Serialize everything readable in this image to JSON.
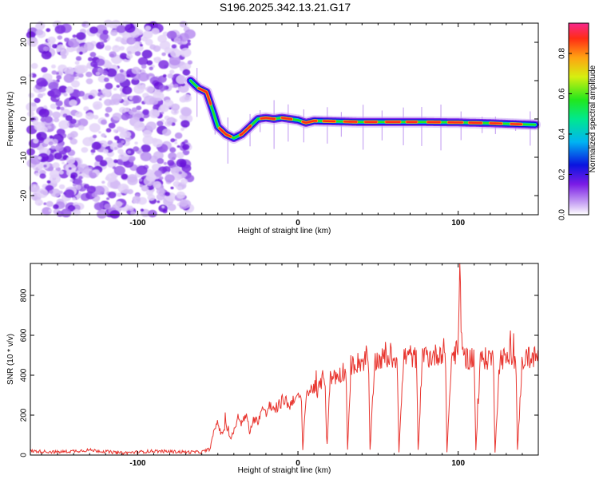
{
  "chart_data": [
    {
      "type": "heatmap",
      "title": "S196.2025.342.13.21.G17",
      "xlabel": "Height of straight line (km)",
      "ylabel": "Frequency (Hz)",
      "xlim": [
        -167,
        150
      ],
      "ylim": [
        -25,
        25
      ],
      "x_ticks": [
        -100,
        0,
        100
      ],
      "x_tick_labels": [
        "-100",
        "0",
        "100"
      ],
      "y_ticks": [
        -20,
        -10,
        0,
        10,
        20
      ],
      "y_tick_labels": [
        "-20",
        "-10",
        "0",
        "10",
        "20"
      ],
      "noise_region_x": [
        -167,
        -67
      ],
      "signal_track": {
        "x": [
          -67,
          -62,
          -57,
          -53,
          -50,
          -45,
          -40,
          -35,
          -30,
          -25,
          -20,
          -15,
          -10,
          -5,
          0,
          5,
          10,
          20,
          40,
          60,
          80,
          100,
          120,
          140,
          148
        ],
        "frequency": [
          10,
          8,
          7,
          2,
          -2,
          -4,
          -5,
          -4,
          -2,
          0,
          0.3,
          0,
          0.3,
          0,
          -0.3,
          -1,
          -0.5,
          -0.6,
          -0.8,
          -0.8,
          -0.8,
          -0.9,
          -1.1,
          -1.4,
          -1.5
        ]
      },
      "colorbar": {
        "label": "Normalized spectral amplitude",
        "ticks": [
          0,
          0.2,
          0.4,
          0.6,
          0.8
        ],
        "tick_labels": [
          "0.0",
          "0.2",
          "0.4",
          "0.6",
          "0.8"
        ],
        "range": [
          0,
          0.95
        ]
      }
    },
    {
      "type": "line",
      "xlabel": "Height of straight line (km)",
      "ylabel": "SNR (10 * v/v)",
      "xlim": [
        -167,
        150
      ],
      "ylim": [
        0,
        960
      ],
      "x_ticks": [
        -100,
        0,
        100
      ],
      "x_tick_labels": [
        "-100",
        "0",
        "100"
      ],
      "y_ticks": [
        0,
        200,
        400,
        600,
        800
      ],
      "y_tick_labels": [
        "0",
        "200",
        "400",
        "600",
        "800"
      ],
      "color": "#e8352f",
      "series": [
        {
          "name": "SNR",
          "x": [
            -167,
            -150,
            -130,
            -110,
            -90,
            -70,
            -60,
            -55,
            -52,
            -50,
            -48,
            -45,
            -42,
            -40,
            -38,
            -35,
            -32,
            -30,
            -28,
            -25,
            -22,
            -20,
            -18,
            -15,
            -12,
            -10,
            -8,
            -5,
            -3,
            0,
            2,
            3,
            5,
            8,
            10,
            12,
            15,
            17,
            18,
            20,
            23,
            25,
            28,
            30,
            31,
            33,
            36,
            40,
            44,
            45,
            48,
            52,
            56,
            60,
            62,
            63,
            66,
            70,
            74,
            75,
            78,
            82,
            86,
            90,
            92,
            93,
            96,
            100,
            101,
            102,
            104,
            108,
            110,
            111,
            114,
            118,
            120,
            122,
            123,
            126,
            130,
            134,
            136,
            137,
            140,
            144,
            148
          ],
          "y": [
            20,
            15,
            25,
            10,
            20,
            15,
            15,
            30,
            130,
            170,
            100,
            150,
            80,
            120,
            170,
            160,
            200,
            110,
            180,
            170,
            240,
            200,
            250,
            220,
            250,
            270,
            280,
            240,
            290,
            280,
            300,
            20,
            310,
            320,
            350,
            300,
            380,
            380,
            20,
            380,
            400,
            390,
            420,
            420,
            20,
            450,
            460,
            470,
            480,
            20,
            470,
            480,
            490,
            480,
            500,
            20,
            490,
            500,
            480,
            20,
            510,
            490,
            500,
            520,
            500,
            20,
            500,
            520,
            950,
            600,
            490,
            480,
            500,
            20,
            490,
            480,
            500,
            470,
            20,
            490,
            480,
            500,
            470,
            20,
            480,
            490,
            490
          ]
        }
      ]
    }
  ]
}
